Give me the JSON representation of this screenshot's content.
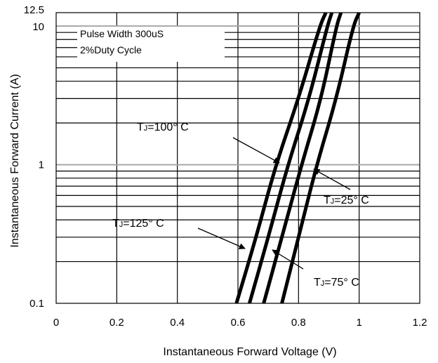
{
  "chart_data": {
    "type": "line",
    "title": "",
    "xlabel": "Instantaneous Forward Voltage (V)",
    "ylabel": "Instantaneous Forward Current (A)",
    "xlim": [
      0,
      1.2
    ],
    "ylim": [
      0.1,
      12.5
    ],
    "yscale": "log",
    "grid": true,
    "x_ticks": [
      "0",
      "0.2",
      "0.4",
      "0.6",
      "0.8",
      "1",
      "1.2"
    ],
    "y_ticks": [
      {
        "value": 0.1,
        "label": "0.1"
      },
      {
        "value": 1,
        "label": "1"
      },
      {
        "value": 10,
        "label": "10"
      },
      {
        "value": 12.5,
        "label": "12.5"
      }
    ],
    "notes": [
      "Pulse Width 300uS",
      "2%Duty Cycle"
    ],
    "series": [
      {
        "label_prefix": "T",
        "label_sub": "J",
        "label_suffix": "=125° C",
        "points": [
          [
            0.595,
            0.1
          ],
          [
            0.66,
            0.3
          ],
          [
            0.725,
            1
          ],
          [
            0.8,
            3
          ],
          [
            0.87,
            10
          ],
          [
            0.89,
            12.5
          ]
        ]
      },
      {
        "label_prefix": "T",
        "label_sub": "J",
        "label_suffix": "=100° C",
        "points": [
          [
            0.638,
            0.1
          ],
          [
            0.7,
            0.3
          ],
          [
            0.765,
            1
          ],
          [
            0.835,
            3
          ],
          [
            0.895,
            10
          ],
          [
            0.91,
            12.5
          ]
        ]
      },
      {
        "label_prefix": "T",
        "label_sub": "J",
        "label_suffix": "=75° C",
        "points": [
          [
            0.685,
            0.1
          ],
          [
            0.745,
            0.3
          ],
          [
            0.81,
            1
          ],
          [
            0.875,
            3
          ],
          [
            0.925,
            10
          ],
          [
            0.94,
            12.5
          ]
        ]
      },
      {
        "label_prefix": "T",
        "label_sub": "J",
        "label_suffix": "=25° C",
        "points": [
          [
            0.745,
            0.1
          ],
          [
            0.8,
            0.3
          ],
          [
            0.86,
            1
          ],
          [
            0.925,
            3
          ],
          [
            0.98,
            10
          ],
          [
            1.0,
            12.5
          ]
        ]
      }
    ]
  }
}
